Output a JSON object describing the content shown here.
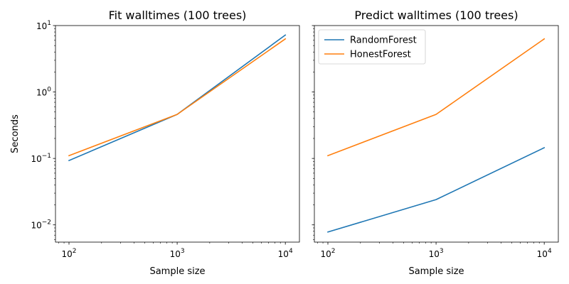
{
  "chart_data": [
    {
      "type": "line",
      "title": "Fit walltimes (100 trees)",
      "xlabel": "Sample size",
      "ylabel": "Seconds",
      "xscale": "log",
      "yscale": "log",
      "xlim": [
        75,
        13500
      ],
      "ylim": [
        0.0055,
        10
      ],
      "x": [
        100,
        1000,
        10000
      ],
      "xticks": [
        {
          "base": "10",
          "exp": "2"
        },
        {
          "base": "10",
          "exp": "3"
        },
        {
          "base": "10",
          "exp": "4"
        }
      ],
      "yticks": [
        {
          "base": "10",
          "exp": "−2"
        },
        {
          "base": "10",
          "exp": "−1"
        },
        {
          "base": "10",
          "exp": "0"
        },
        {
          "base": "10",
          "exp": "1"
        }
      ],
      "grid": false,
      "legend": null,
      "series": [
        {
          "name": "RandomForest",
          "color": "#1f77b4",
          "values": [
            0.093,
            0.46,
            7.2
          ]
        },
        {
          "name": "HonestForest",
          "color": "#ff7f0e",
          "values": [
            0.11,
            0.46,
            6.3
          ]
        }
      ]
    },
    {
      "type": "line",
      "title": "Predict walltimes (100 trees)",
      "xlabel": "Sample size",
      "ylabel": "",
      "xscale": "log",
      "yscale": "log",
      "xlim": [
        75,
        13500
      ],
      "ylim": [
        0.0055,
        10
      ],
      "x": [
        100,
        1000,
        10000
      ],
      "xticks": [
        {
          "base": "10",
          "exp": "2"
        },
        {
          "base": "10",
          "exp": "3"
        },
        {
          "base": "10",
          "exp": "4"
        }
      ],
      "yticks": [],
      "grid": false,
      "legend": "top-left",
      "series": [
        {
          "name": "RandomForest",
          "color": "#1f77b4",
          "values": [
            0.0078,
            0.024,
            0.145
          ]
        },
        {
          "name": "HonestForest",
          "color": "#ff7f0e",
          "values": [
            0.11,
            0.46,
            6.3
          ]
        }
      ]
    }
  ]
}
